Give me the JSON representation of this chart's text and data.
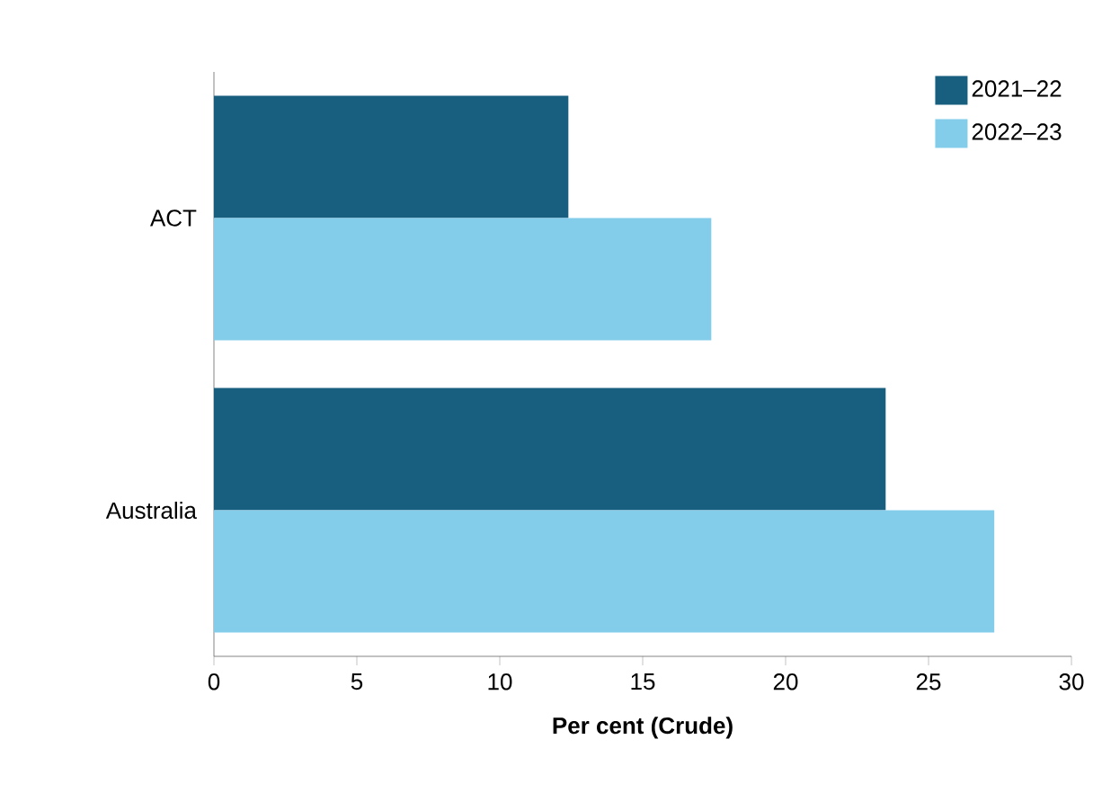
{
  "chart_data": {
    "type": "bar",
    "orientation": "horizontal",
    "xlabel": "Per cent (Crude)",
    "categories": [
      "ACT",
      "Australia"
    ],
    "series": [
      {
        "name": "2021–22",
        "color": "#185f7f",
        "values": [
          12.4,
          23.5
        ]
      },
      {
        "name": "2022–23",
        "color": "#83cdeb",
        "values": [
          17.4,
          27.3
        ]
      }
    ],
    "xlim": [
      0,
      30
    ],
    "xticks": [
      0,
      5,
      10,
      15,
      20,
      25,
      30
    ],
    "legend": "top right",
    "grid": false
  }
}
